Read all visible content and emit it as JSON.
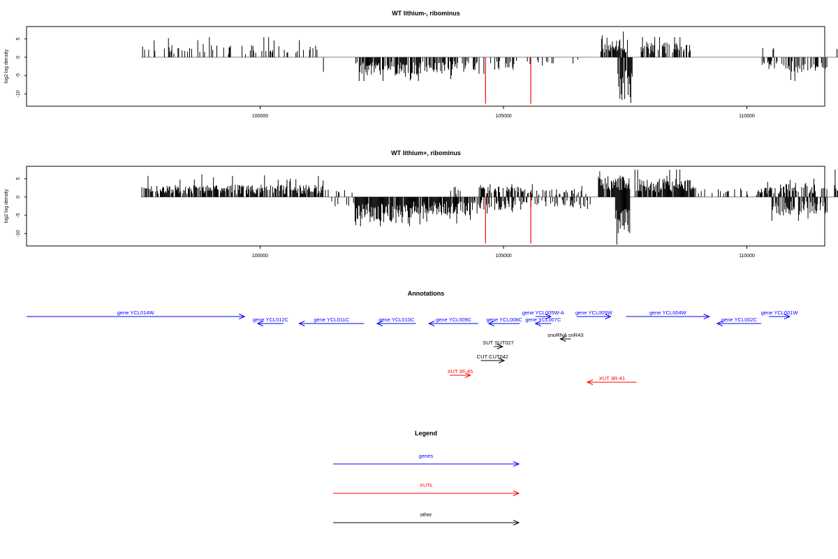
{
  "chart_data": [
    {
      "type": "bar",
      "title": "WT lithium-, ribominus",
      "ylabel": "log2 log density",
      "xlabel": "",
      "xlim": [
        95200,
        111600
      ],
      "ylim": [
        -13,
        8
      ],
      "xticks": [
        100000,
        105000,
        110000
      ],
      "yticks": [
        5,
        0,
        -5,
        -10
      ],
      "grid": false,
      "markers": [
        104630,
        105560
      ],
      "marker_color": "#ff0000",
      "plus_strand_regions": [
        {
          "start": 97570,
          "end": 101200,
          "density": 0.25,
          "mean": 2.3,
          "max": 5.5
        },
        {
          "start": 103900,
          "end": 104000,
          "density": 0.1,
          "mean": 1.5,
          "max": 2.0
        },
        {
          "start": 107000,
          "end": 107550,
          "density": 0.7,
          "mean": 3.5,
          "max": 7.0
        },
        {
          "start": 107800,
          "end": 108850,
          "density": 0.55,
          "mean": 2.8,
          "max": 5.5
        },
        {
          "start": 110200,
          "end": 110800,
          "density": 0.05,
          "mean": 2.0,
          "max": 2.5
        },
        {
          "start": 111850,
          "end": 112550,
          "density": 0.85,
          "mean": 3.8,
          "max": 7.0
        }
      ],
      "minus_strand_regions": [
        {
          "start": 101300,
          "end": 101400,
          "density": 0.15,
          "mean": 3.0,
          "max": 4.0
        },
        {
          "start": 101950,
          "end": 103300,
          "density": 0.8,
          "mean": 3.5,
          "max": 6.5
        },
        {
          "start": 103300,
          "end": 104400,
          "density": 0.45,
          "mean": 2.8,
          "max": 6.0
        },
        {
          "start": 104400,
          "end": 105300,
          "density": 0.45,
          "mean": 2.5,
          "max": 4.5
        },
        {
          "start": 105350,
          "end": 106700,
          "density": 0.12,
          "mean": 1.5,
          "max": 3.0
        },
        {
          "start": 107350,
          "end": 107650,
          "density": 0.9,
          "mean": 8.5,
          "max": 12.5
        },
        {
          "start": 109200,
          "end": 109250,
          "density": 0.2,
          "mean": 1.0,
          "max": 1.0
        },
        {
          "start": 110300,
          "end": 111650,
          "density": 0.45,
          "mean": 3.0,
          "max": 6.5
        }
      ]
    },
    {
      "type": "bar",
      "title": "WT lithium+, ribominus",
      "ylabel": "log2 log density",
      "xlabel": "",
      "xlim": [
        95200,
        111600
      ],
      "ylim": [
        -13,
        8
      ],
      "xticks": [
        100000,
        105000,
        110000
      ],
      "yticks": [
        5,
        0,
        -5,
        -10
      ],
      "grid": false,
      "markers": [
        104630,
        105560
      ],
      "marker_color": "#ff0000",
      "plus_strand_regions": [
        {
          "start": 97570,
          "end": 101300,
          "density": 0.75,
          "mean": 2.3,
          "max": 6.5
        },
        {
          "start": 101300,
          "end": 101900,
          "density": 0.1,
          "mean": 1.5,
          "max": 2.0
        },
        {
          "start": 103900,
          "end": 104200,
          "density": 0.2,
          "mean": 2.0,
          "max": 3.0
        },
        {
          "start": 104500,
          "end": 105600,
          "density": 0.6,
          "mean": 2.0,
          "max": 3.5
        },
        {
          "start": 105600,
          "end": 106700,
          "density": 0.3,
          "mean": 1.5,
          "max": 3.0
        },
        {
          "start": 106950,
          "end": 107600,
          "density": 0.85,
          "mean": 4.0,
          "max": 7.0
        },
        {
          "start": 107700,
          "end": 108950,
          "density": 0.9,
          "mean": 3.5,
          "max": 7.5
        },
        {
          "start": 108950,
          "end": 110300,
          "density": 0.25,
          "mean": 1.5,
          "max": 3.5
        },
        {
          "start": 110300,
          "end": 111700,
          "density": 0.55,
          "mean": 2.5,
          "max": 5.0
        },
        {
          "start": 111800,
          "end": 112550,
          "density": 0.95,
          "mean": 4.0,
          "max": 7.5
        }
      ],
      "minus_strand_regions": [
        {
          "start": 101400,
          "end": 101950,
          "density": 0.2,
          "mean": 2.5,
          "max": 4.0
        },
        {
          "start": 101950,
          "end": 103100,
          "density": 0.95,
          "mean": 5.0,
          "max": 8.0
        },
        {
          "start": 103100,
          "end": 104400,
          "density": 0.85,
          "mean": 3.5,
          "max": 7.5
        },
        {
          "start": 104400,
          "end": 105200,
          "density": 0.5,
          "mean": 2.5,
          "max": 4.5
        },
        {
          "start": 105200,
          "end": 106800,
          "density": 0.35,
          "mean": 2.0,
          "max": 4.0
        },
        {
          "start": 107300,
          "end": 107600,
          "density": 0.95,
          "mean": 7.5,
          "max": 13.0
        },
        {
          "start": 110500,
          "end": 111650,
          "density": 0.7,
          "mean": 3.5,
          "max": 6.5
        }
      ]
    }
  ],
  "annotations": {
    "title": "Annotations",
    "features": [
      {
        "label": "gene YCL014W",
        "start": 94500,
        "end": 98700,
        "strand": "+",
        "color": "#0000ff",
        "row": 0
      },
      {
        "label": "gene YCL012C",
        "start": 98950,
        "end": 99450,
        "strand": "-",
        "color": "#0000ff",
        "row": 1
      },
      {
        "label": "gene YCL011C",
        "start": 99750,
        "end": 101000,
        "strand": "-",
        "color": "#0000ff",
        "row": 1
      },
      {
        "label": "gene YCL010C",
        "start": 101250,
        "end": 102000,
        "strand": "-",
        "color": "#0000ff",
        "row": 1
      },
      {
        "label": "gene YCL009C",
        "start": 102250,
        "end": 103200,
        "strand": "-",
        "color": "#0000ff",
        "row": 1
      },
      {
        "label": "gene YCL008C",
        "start": 103400,
        "end": 104000,
        "strand": "-",
        "color": "#0000ff",
        "row": 1
      },
      {
        "label": "gene YCL005W-A",
        "start": 104300,
        "end": 104600,
        "strand": "+",
        "color": "#0000ff",
        "row": 0
      },
      {
        "label": "gene YCL007C",
        "start": 104300,
        "end": 104600,
        "strand": "-",
        "color": "#0000ff",
        "row": 1
      },
      {
        "label": "gene YCL005W",
        "start": 105100,
        "end": 105750,
        "strand": "+",
        "color": "#0000ff",
        "row": 0
      },
      {
        "label": "gene YCL004W",
        "start": 106050,
        "end": 107650,
        "strand": "+",
        "color": "#0000ff",
        "row": 0
      },
      {
        "label": "gene YCL002C",
        "start": 107800,
        "end": 108650,
        "strand": "-",
        "color": "#0000ff",
        "row": 1
      },
      {
        "label": "gene YCL001W",
        "start": 108800,
        "end": 109200,
        "strand": "+",
        "color": "#0000ff",
        "row": 0
      },
      {
        "label": "snoRNA snR43",
        "start": 104780,
        "end": 104980,
        "strand": "-",
        "color": "#000000",
        "row": 2
      },
      {
        "label": "SUT SUT027",
        "start": 103500,
        "end": 103670,
        "strand": "+",
        "color": "#000000",
        "row": 3
      },
      {
        "label": "CUT CUT042",
        "start": 103250,
        "end": 103700,
        "strand": "+",
        "color": "#000000",
        "row": 4
      },
      {
        "label": "XUT 3F-45",
        "start": 102650,
        "end": 103050,
        "strand": "+",
        "color": "#ff0000",
        "row": 5
      },
      {
        "label": "XUT 3R-41",
        "start": 105300,
        "end": 106250,
        "strand": "-",
        "color": "#ff0000",
        "row": 6
      }
    ]
  },
  "legend": {
    "title": "Legend",
    "items": [
      {
        "label": "genes",
        "color": "#0000ff"
      },
      {
        "label": "XUTs",
        "color": "#ff0000"
      },
      {
        "label": "other",
        "color": "#000000"
      }
    ]
  }
}
